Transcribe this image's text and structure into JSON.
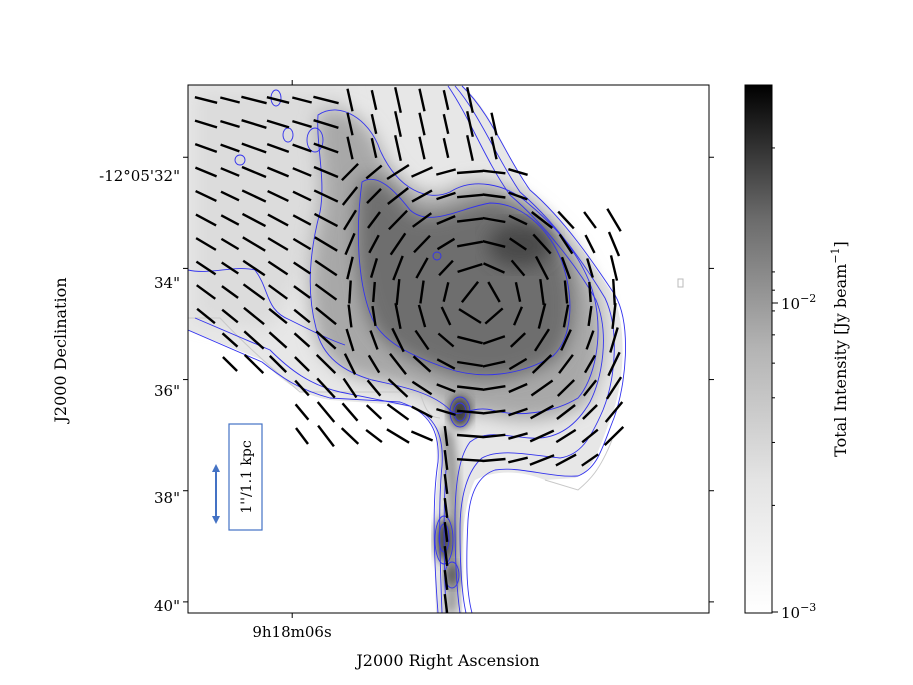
{
  "chart_data": {
    "type": "heatmap",
    "description_free": true,
    "xlabel": "J2000 Right Ascension",
    "ylabel": "J2000 Declination",
    "x_ticks": [
      {
        "label": "9h18m06s",
        "frac": 0.2
      }
    ],
    "y_ticks": [
      {
        "label": "-12°05'32\"",
        "value": 32
      },
      {
        "label": "34\"",
        "value": 34
      },
      {
        "label": "36\"",
        "value": 36
      },
      {
        "label": "38\"",
        "value": 38
      },
      {
        "label": "40\"",
        "value": 40
      }
    ],
    "ylim": [
      30.7,
      40.2
    ],
    "colorbar": {
      "label": "Total Intensity [Jy beam",
      "label_exp": "−1",
      "label_close": "]",
      "scale": "log",
      "range": [
        0.001,
        0.03
      ],
      "ticks": [
        {
          "base": "10",
          "exp": "−2",
          "value": 0.01
        },
        {
          "base": "10",
          "exp": "−3",
          "value": 0.001
        }
      ],
      "colormap": "gray_r"
    },
    "scale_bar": {
      "text": "1''/1.1 kpc",
      "color": "#4472c4"
    },
    "contour_color": "#3333ee",
    "vector_color": "#000000",
    "grid": false
  }
}
